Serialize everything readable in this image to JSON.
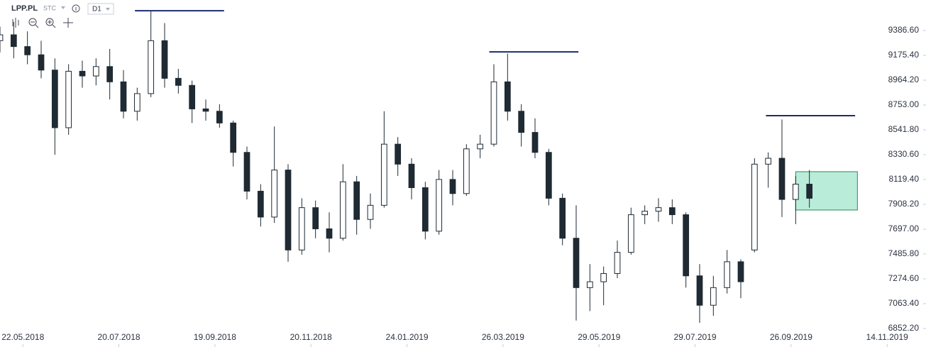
{
  "toolbar": {
    "symbol": "LPP.PL",
    "exchange": "STC",
    "interval": "D1"
  },
  "chart_data": {
    "type": "candlestick",
    "x": [
      -10,
      -4,
      2,
      8,
      14,
      20,
      26,
      32,
      38,
      44,
      50,
      56,
      62,
      68,
      74,
      80,
      86,
      92,
      98,
      104,
      110,
      116,
      122,
      128,
      134,
      140,
      146,
      152,
      158,
      164,
      170,
      176,
      182,
      188,
      194,
      200,
      206,
      212,
      218,
      224,
      230,
      236,
      242,
      248,
      254,
      260,
      266,
      272,
      278,
      284,
      290,
      296,
      302,
      308,
      314,
      320,
      326,
      332,
      338,
      344
    ],
    "open": [
      9300,
      9350,
      9250,
      9180,
      9050,
      8560,
      9040,
      9000,
      9080,
      8950,
      8700,
      8850,
      9300,
      8980,
      8920,
      8720,
      8700,
      8600,
      8350,
      8020,
      7800,
      8200,
      7520,
      7880,
      7700,
      7620,
      8100,
      7780,
      7900,
      8420,
      8250,
      8050,
      7680,
      8120,
      8000,
      8380,
      8420,
      8950,
      8700,
      8520,
      8350,
      7960,
      7620,
      7200,
      7250,
      7320,
      7500,
      7820,
      7850,
      7880,
      7820,
      7300,
      7050,
      7200,
      7420,
      7520,
      8250,
      8300,
      7950,
      8080
    ],
    "high": [
      9420,
      9460,
      9380,
      9300,
      9150,
      9100,
      9130,
      9150,
      9230,
      9050,
      8900,
      9555,
      9450,
      9060,
      8960,
      8800,
      8760,
      8620,
      8400,
      8080,
      8570,
      8250,
      7960,
      7940,
      7840,
      8250,
      8150,
      8000,
      8700,
      8480,
      8300,
      8100,
      8200,
      8200,
      8420,
      8500,
      9100,
      9190,
      8760,
      8640,
      8380,
      8000,
      7900,
      7400,
      7380,
      7600,
      7880,
      7900,
      7960,
      7950,
      7840,
      7400,
      7300,
      7520,
      7440,
      8300,
      8350,
      8630,
      8150,
      8200
    ],
    "low": [
      9200,
      9150,
      9100,
      8980,
      8330,
      8500,
      8900,
      8920,
      8800,
      8640,
      8620,
      8820,
      8900,
      8850,
      8600,
      8620,
      8560,
      8230,
      7950,
      7720,
      7750,
      7420,
      7480,
      7620,
      7500,
      7600,
      7650,
      7700,
      7880,
      8150,
      7950,
      7610,
      7650,
      7900,
      7980,
      8300,
      8400,
      8620,
      8400,
      8300,
      7900,
      7560,
      6920,
      7000,
      7050,
      7280,
      7480,
      7740,
      7760,
      7740,
      7200,
      6900,
      6960,
      7150,
      7110,
      7500,
      8050,
      7800,
      7740,
      7880
    ],
    "close": [
      9350,
      9250,
      9180,
      9050,
      8560,
      9040,
      9000,
      9080,
      8950,
      8700,
      8850,
      9300,
      8980,
      8920,
      8720,
      8700,
      8600,
      8350,
      8020,
      7800,
      8200,
      7520,
      7880,
      7700,
      7620,
      8100,
      7780,
      7900,
      8420,
      8250,
      8050,
      7680,
      8120,
      8000,
      8380,
      8420,
      8950,
      8700,
      8520,
      8350,
      7960,
      7620,
      7200,
      7250,
      7320,
      7500,
      7820,
      7850,
      7880,
      7820,
      7300,
      7050,
      7200,
      7420,
      7250,
      8250,
      8300,
      7950,
      8080,
      7960
    ],
    "colors": {
      "up": "#ffffff",
      "down": "#1f2a33",
      "wick": "#1f2a33"
    },
    "xlim": [
      -10,
      395
    ],
    "xticks": [
      {
        "value": 0,
        "label": "22.05.2018"
      },
      {
        "value": 42,
        "label": "20.07.2018"
      },
      {
        "value": 84,
        "label": "19.09.2018"
      },
      {
        "value": 126,
        "label": "20.11.2018"
      },
      {
        "value": 168,
        "label": "24.01.2019"
      },
      {
        "value": 210,
        "label": "26.03.2019"
      },
      {
        "value": 252,
        "label": "29.05.2019"
      },
      {
        "value": 294,
        "label": "29.07.2019"
      },
      {
        "value": 336,
        "label": "26.09.2019"
      },
      {
        "value": 378,
        "label": "14.11.2019"
      }
    ],
    "ylim": [
      6695,
      9646
    ],
    "yticks": [
      {
        "value": 6852.2,
        "label": "6852.20"
      },
      {
        "value": 7063.4,
        "label": "7063.40"
      },
      {
        "value": 7274.6,
        "label": "7274.60"
      },
      {
        "value": 7485.8,
        "label": "7485.80"
      },
      {
        "value": 7697,
        "label": "7697.00"
      },
      {
        "value": 7908.2,
        "label": "7908.20"
      },
      {
        "value": 8119.4,
        "label": "8119.40"
      },
      {
        "value": 8330.6,
        "label": "8330.60"
      },
      {
        "value": 8541.8,
        "label": "8541.80"
      },
      {
        "value": 8753,
        "label": "8753.00"
      },
      {
        "value": 8964.2,
        "label": "8964.20"
      },
      {
        "value": 9175.4,
        "label": "9175.40"
      },
      {
        "value": 9386.6,
        "label": "9386.60"
      }
    ],
    "hlines": [
      {
        "y": 9555,
        "x": [
          49,
          88
        ]
      },
      {
        "y": 9205,
        "x": [
          204,
          243
        ]
      },
      {
        "y": 8662,
        "x": [
          325,
          364
        ]
      }
    ],
    "hline_color": "#1a2e6e",
    "zone": {
      "y": [
        7860,
        8186
      ],
      "x": [
        338,
        365
      ],
      "fill": "#b3ead6",
      "stroke": "#2e8b57"
    }
  }
}
